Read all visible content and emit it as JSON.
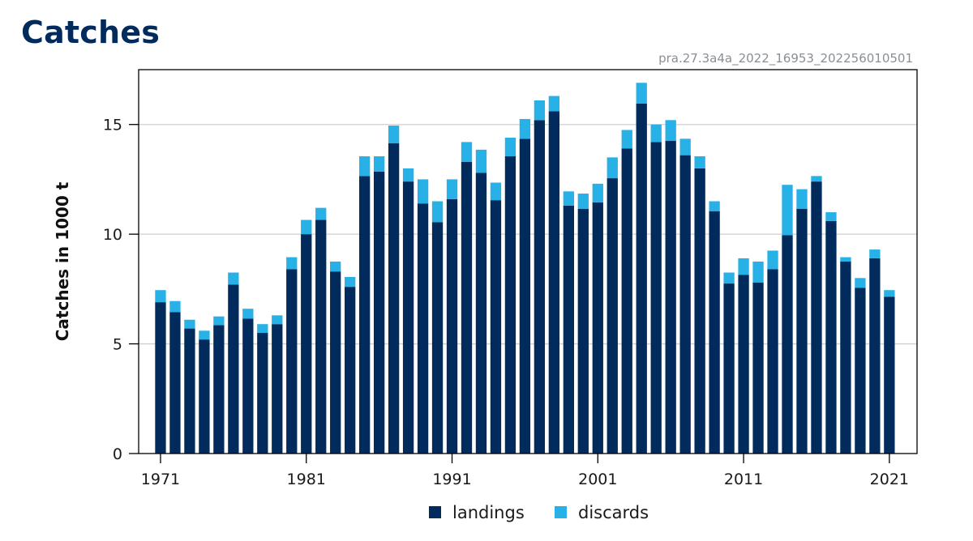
{
  "page": {
    "title": "Catches",
    "code": "pra.27.3a4a_2022_16953_202256010501"
  },
  "chart_data": {
    "type": "bar",
    "stacked": true,
    "title": "Catches",
    "xlabel": "",
    "ylabel": "Catches in 1000 t",
    "ylim": [
      0,
      17.5
    ],
    "yticks": [
      0,
      5,
      10,
      15
    ],
    "xticks": [
      1971,
      1981,
      1991,
      2001,
      2011,
      2021
    ],
    "grid": "horizontal",
    "legend_position": "bottom",
    "x": [
      1971,
      1972,
      1973,
      1974,
      1975,
      1976,
      1977,
      1978,
      1979,
      1980,
      1981,
      1982,
      1983,
      1984,
      1985,
      1986,
      1987,
      1988,
      1989,
      1990,
      1991,
      1992,
      1993,
      1994,
      1995,
      1996,
      1997,
      1998,
      1999,
      2000,
      2001,
      2002,
      2003,
      2004,
      2005,
      2006,
      2007,
      2008,
      2009,
      2010,
      2011,
      2012,
      2013,
      2014,
      2015,
      2016,
      2017,
      2018,
      2019,
      2020,
      2021
    ],
    "series": [
      {
        "name": "landings",
        "color": "#002b5c",
        "values": [
          6.9,
          6.45,
          5.7,
          5.2,
          5.85,
          7.7,
          6.15,
          5.5,
          5.9,
          8.4,
          10.0,
          10.65,
          8.3,
          7.6,
          12.65,
          12.85,
          14.15,
          12.4,
          11.4,
          10.55,
          11.6,
          13.3,
          12.8,
          11.55,
          13.55,
          14.35,
          15.2,
          15.6,
          11.3,
          11.15,
          11.45,
          12.55,
          13.9,
          15.95,
          14.2,
          14.25,
          13.6,
          13.0,
          11.05,
          7.75,
          8.15,
          7.8,
          8.4,
          9.95,
          11.15,
          12.4,
          10.6,
          8.75,
          7.55,
          8.9,
          7.15
        ]
      },
      {
        "name": "discards",
        "color": "#27b1e6",
        "values": [
          0.55,
          0.5,
          0.4,
          0.4,
          0.4,
          0.55,
          0.45,
          0.4,
          0.4,
          0.55,
          0.65,
          0.55,
          0.45,
          0.45,
          0.9,
          0.7,
          0.8,
          0.6,
          1.1,
          0.95,
          0.9,
          0.9,
          1.05,
          0.8,
          0.85,
          0.9,
          0.9,
          0.7,
          0.65,
          0.7,
          0.85,
          0.95,
          0.85,
          0.95,
          0.8,
          0.95,
          0.75,
          0.55,
          0.45,
          0.5,
          0.75,
          0.95,
          0.85,
          2.3,
          0.9,
          0.25,
          0.4,
          0.2,
          0.45,
          0.4,
          0.3
        ]
      }
    ]
  }
}
